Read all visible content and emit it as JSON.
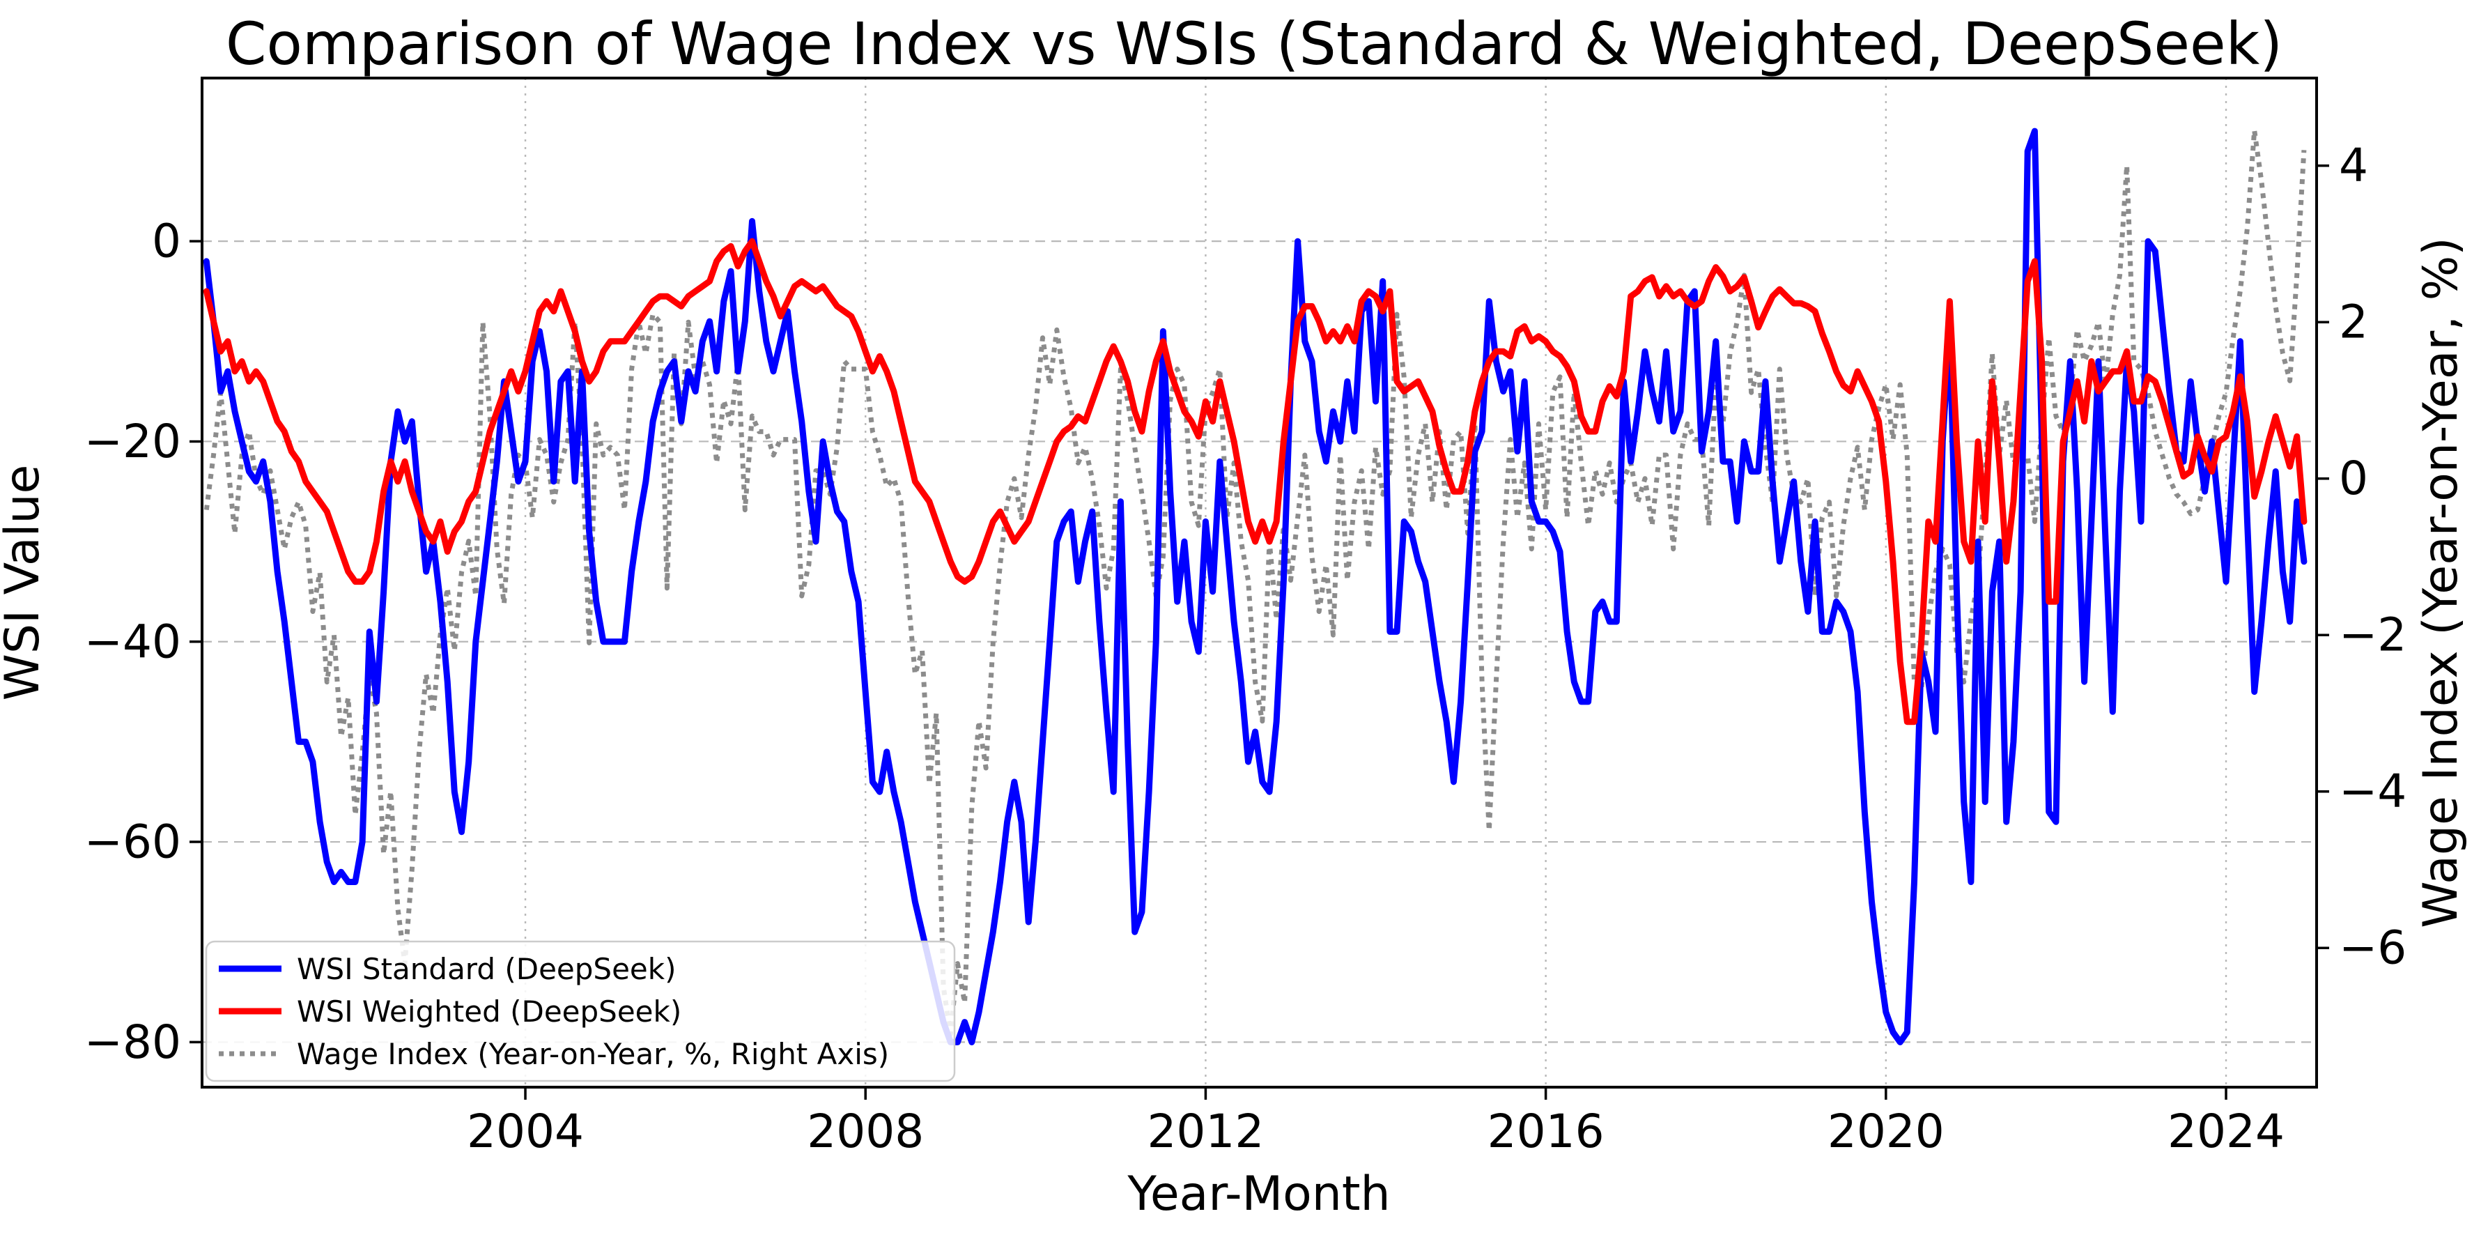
{
  "title": "Comparison of Wage Index vs WSIs (Standard & Weighted, DeepSeek)",
  "axes": {
    "x": {
      "label": "Year-Month",
      "tick_years": [
        2004,
        2008,
        2012,
        2016,
        2020,
        2024
      ]
    },
    "left": {
      "label": "WSI Value",
      "ticks": [
        0,
        -20,
        -40,
        -60,
        -80
      ],
      "lim": [
        -84.5,
        16.3
      ]
    },
    "right": {
      "label": "Wage Index (Year-on-Year, %)",
      "ticks": [
        4,
        2,
        0,
        -2,
        -4,
        -6
      ],
      "lim": [
        -7.78,
        5.12
      ]
    }
  },
  "legend": {
    "items": [
      {
        "label": "WSI Standard (DeepSeek)",
        "color": "#0000ff",
        "style": "solid"
      },
      {
        "label": "WSI Weighted (DeepSeek)",
        "color": "#ff0000",
        "style": "solid"
      },
      {
        "label": "Wage Index (Year-on-Year, %, Right Axis)",
        "color": "#8c8c8c",
        "style": "dotted"
      }
    ]
  },
  "colors": {
    "wsi_standard": "#0000ff",
    "wsi_weighted": "#ff0000",
    "wage_index": "#8c8c8c",
    "grid": "#b8b8b8",
    "spine": "#000000",
    "background": "#ffffff"
  },
  "chart_data": {
    "type": "line",
    "title": "Comparison of Wage Index vs WSIs (Standard & Weighted, DeepSeek)",
    "xlabel": "Year-Month",
    "x_start": "2000-04",
    "x_freq": "monthly",
    "x_start_year_frac": 2000.25,
    "x_lim_year_frac": [
      2000.198,
      2025.065
    ],
    "grid": true,
    "legend_position": "lower left",
    "series": [
      {
        "name": "WSI Standard (DeepSeek)",
        "axis": "left",
        "color": "#0000ff",
        "style": "solid",
        "values": [
          -2,
          -8,
          -15,
          -13,
          -17,
          -20,
          -23,
          -24,
          -22,
          -26,
          -33,
          -38,
          -44,
          -50,
          -50,
          -52,
          -58,
          -62,
          -64,
          -63,
          -64,
          -64,
          -60,
          -39,
          -46,
          -35,
          -22,
          -17,
          -20,
          -18,
          -26,
          -33,
          -30,
          -36,
          -44,
          -55,
          -59,
          -52,
          -40,
          -34,
          -28,
          -22,
          -14,
          -19,
          -24,
          -22,
          -12,
          -9,
          -13,
          -24,
          -14,
          -13,
          -24,
          -13,
          -29,
          -36,
          -40,
          -40,
          -40,
          -40,
          -33,
          -28,
          -24,
          -18,
          -15,
          -13,
          -12,
          -18,
          -13,
          -15,
          -10,
          -8,
          -13,
          -6,
          -3,
          -13,
          -8,
          2,
          -5,
          -10,
          -13,
          -10,
          -7,
          -13,
          -18,
          -25,
          -30,
          -20,
          -24,
          -27,
          -28,
          -33,
          -36,
          -45,
          -54,
          -55,
          -51,
          -55,
          -58,
          -62,
          -66,
          -69,
          -72,
          -75,
          -78,
          -80,
          -80,
          -78,
          -80,
          -77,
          -73,
          -69,
          -64,
          -58,
          -54,
          -58,
          -68,
          -60,
          -50,
          -40,
          -30,
          -28,
          -27,
          -34,
          -30,
          -27,
          -38,
          -47,
          -55,
          -26,
          -50,
          -69,
          -67,
          -55,
          -40,
          -9,
          -25,
          -36,
          -30,
          -38,
          -41,
          -28,
          -35,
          -22,
          -30,
          -38,
          -44,
          -52,
          -49,
          -54,
          -55,
          -48,
          -34,
          -14,
          0,
          -10,
          -12,
          -19,
          -22,
          -17,
          -20,
          -14,
          -19,
          -7,
          -6,
          -16,
          -4,
          -39,
          -39,
          -28,
          -29,
          -32,
          -34,
          -39,
          -44,
          -48,
          -54,
          -46,
          -34,
          -21,
          -19,
          -6,
          -12,
          -15,
          -13,
          -21,
          -14,
          -26,
          -28,
          -28,
          -29,
          -31,
          -39,
          -44,
          -46,
          -46,
          -37,
          -36,
          -38,
          -38,
          -14,
          -22,
          -17,
          -11,
          -15,
          -18,
          -11,
          -19,
          -17,
          -6,
          -5,
          -21,
          -17,
          -10,
          -22,
          -22,
          -28,
          -20,
          -23,
          -23,
          -14,
          -24,
          -32,
          -28,
          -24,
          -32,
          -37,
          -28,
          -39,
          -39,
          -36,
          -37,
          -39,
          -45,
          -57,
          -66,
          -72,
          -77,
          -79,
          -80,
          -79,
          -64,
          -41,
          -44,
          -49,
          -20,
          -9,
          -35,
          -56,
          -64,
          -30,
          -56,
          -35,
          -30,
          -58,
          -50,
          -35,
          9,
          11,
          -20,
          -57,
          -58,
          -22,
          -12,
          -25,
          -44,
          -28,
          -12,
          -30,
          -47,
          -25,
          -12,
          -17,
          -28,
          0,
          -1,
          -8,
          -15,
          -21,
          -22,
          -14,
          -20,
          -25,
          -20,
          -27,
          -34,
          -22,
          -10,
          -28,
          -45,
          -38,
          -30,
          -23,
          -33,
          -38,
          -26,
          -32
        ]
      },
      {
        "name": "WSI Weighted (DeepSeek)",
        "axis": "left",
        "color": "#ff0000",
        "style": "solid",
        "values": [
          -5,
          -8,
          -11,
          -10,
          -13,
          -12,
          -14,
          -13,
          -14,
          -16,
          -18,
          -19,
          -21,
          -22,
          -24,
          -25,
          -26,
          -27,
          -29,
          -31,
          -33,
          -34,
          -34,
          -33,
          -30,
          -25,
          -22,
          -24,
          -22,
          -25,
          -27,
          -29,
          -30,
          -28,
          -31,
          -29,
          -28,
          -26,
          -25,
          -22,
          -19,
          -17,
          -15,
          -13,
          -15,
          -13,
          -10,
          -7,
          -6,
          -7,
          -5,
          -7,
          -9,
          -12,
          -14,
          -13,
          -11,
          -10,
          -10,
          -10,
          -9,
          -8,
          -7,
          -6,
          -5.5,
          -5.5,
          -6,
          -6.5,
          -5.5,
          -5,
          -4.5,
          -4,
          -2,
          -1,
          -0.5,
          -2.5,
          -1,
          0,
          -2,
          -4,
          -5.5,
          -7.5,
          -6,
          -4.5,
          -4,
          -4.5,
          -5,
          -4.5,
          -5.5,
          -6.5,
          -7,
          -7.5,
          -9,
          -11,
          -13,
          -11.5,
          -13,
          -15,
          -18,
          -21,
          -24,
          -25,
          -26,
          -28,
          -30,
          -32,
          -33.5,
          -34,
          -33.5,
          -32,
          -30,
          -28,
          -27,
          -28.5,
          -30,
          -29,
          -28,
          -26,
          -24,
          -22,
          -20,
          -19,
          -18.5,
          -17.5,
          -18,
          -16,
          -14,
          -12,
          -10.5,
          -12,
          -14,
          -17,
          -19,
          -15,
          -12,
          -10,
          -13,
          -15,
          -17,
          -18,
          -19.5,
          -16,
          -18,
          -14,
          -17,
          -20,
          -24,
          -28,
          -30,
          -28,
          -30,
          -28,
          -20,
          -14,
          -8,
          -6.5,
          -6.5,
          -8,
          -10,
          -9,
          -10,
          -8.5,
          -10,
          -6,
          -5,
          -5.5,
          -7,
          -5,
          -14,
          -15,
          -14.5,
          -14,
          -15.5,
          -17,
          -20.5,
          -23,
          -25,
          -25,
          -22,
          -17,
          -14,
          -12,
          -11,
          -11,
          -11.5,
          -9,
          -8.5,
          -10,
          -9.5,
          -10,
          -11,
          -11.5,
          -12.5,
          -14,
          -17.5,
          -19,
          -19,
          -16,
          -14.5,
          -15.5,
          -13,
          -5.5,
          -5,
          -4,
          -3.6,
          -5.5,
          -4.5,
          -5.5,
          -5,
          -6,
          -6.5,
          -6,
          -4,
          -2.6,
          -3.5,
          -5,
          -4.5,
          -3.6,
          -6,
          -8.6,
          -7,
          -5.5,
          -4.8,
          -5.5,
          -6.2,
          -6.2,
          -6.5,
          -7,
          -9.2,
          -11,
          -13,
          -14.4,
          -15,
          -13,
          -14.5,
          -16,
          -18,
          -24,
          -32,
          -42,
          -48,
          -48,
          -40,
          -28,
          -30,
          -18,
          -6,
          -20,
          -30,
          -32,
          -20,
          -28,
          -14,
          -22,
          -32,
          -26,
          -15,
          -4,
          -2,
          -12,
          -36,
          -36,
          -20,
          -17,
          -14,
          -18,
          -12,
          -15,
          -14,
          -13,
          -13,
          -11,
          -16,
          -16,
          -13.5,
          -14,
          -16,
          -18.5,
          -21,
          -23.5,
          -23,
          -19.5,
          -21.5,
          -23,
          -20,
          -19.5,
          -17,
          -13.5,
          -18,
          -25.5,
          -23,
          -20,
          -17.5,
          -20,
          -22.5,
          -19.5,
          -28
        ]
      },
      {
        "name": "Wage Index (Year-on-Year, %, Right Axis)",
        "axis": "right",
        "color": "#8c8c8c",
        "style": "dotted",
        "values": [
          -0.4,
          0.3,
          1.1,
          0.2,
          -0.7,
          0.3,
          0.6,
          0,
          -0.2,
          0.1,
          -0.4,
          -0.9,
          -0.5,
          -0.3,
          -0.6,
          -1.7,
          -1.2,
          -2.6,
          -2,
          -3.3,
          -2.8,
          -4.3,
          -3.5,
          -2.5,
          -3,
          -4.8,
          -4,
          -5.5,
          -6.2,
          -5,
          -3.5,
          -2.5,
          -3,
          -2,
          -1.4,
          -2.2,
          -1.2,
          -0.8,
          -1.5,
          2,
          0.8,
          -0.9,
          -1.6,
          -0.2,
          0.3,
          0.2,
          -0.5,
          0.5,
          0.3,
          -0.3,
          0.2,
          0.5,
          2,
          0.5,
          -2.1,
          0.7,
          0.3,
          0.4,
          0.3,
          -0.4,
          1.4,
          2,
          1.6,
          2.1,
          2,
          -1.4,
          1.6,
          0.7,
          2,
          1.3,
          1.5,
          1.2,
          0.2,
          1,
          0.7,
          1.5,
          -0.4,
          0.8,
          0.6,
          0.6,
          0.3,
          0.5,
          0.5,
          0.5,
          -1.5,
          -1.1,
          0.1,
          0.1,
          -0.2,
          0.4,
          1.5,
          1.4,
          1.4,
          1.4,
          0.6,
          0.3,
          -0.1,
          0,
          -0.3,
          -1.5,
          -2.5,
          -2.2,
          -3.9,
          -3,
          -6.5,
          -7.1,
          -6.2,
          -6.7,
          -4.2,
          -3.1,
          -3.7,
          -2.1,
          -1.1,
          -0.3,
          0,
          -0.5,
          0.3,
          0.9,
          1.8,
          1.2,
          1.9,
          1.3,
          0.9,
          0.2,
          0.4,
          0,
          -0.6,
          -1.4,
          -0.9,
          1.4,
          1,
          0.4,
          -0.2,
          -0.8,
          -1.5,
          -1,
          1,
          1.4,
          1.2,
          -0.3,
          -0.6,
          0.9,
          1.1,
          1.4,
          -0.5,
          0.2,
          -0.8,
          -1.3,
          -2.6,
          -3.1,
          -0.8,
          -1.8,
          -0.6,
          -1.3,
          -0.5,
          0.3,
          -1,
          -1.7,
          -1.1,
          -2,
          0.3,
          -1.3,
          -0.3,
          0.1,
          -0.9,
          0.4,
          -0.2,
          0.1,
          2.1,
          1.3,
          -0.5,
          0.3,
          0.7,
          -0.3,
          0.6,
          -0.4,
          0.5,
          0.6,
          -0.7,
          0.7,
          -2.6,
          -4.5,
          -2.6,
          -0.8,
          0.5,
          -0.5,
          0.2,
          -0.9,
          0.7,
          -0.4,
          1.1,
          1.3,
          -0.5,
          1.1,
          0.2,
          -0.6,
          0.1,
          -0.2,
          0.2,
          -0.3,
          0,
          0.2,
          -0.3,
          0,
          -0.6,
          0.3,
          0.3,
          -0.9,
          0.3,
          0.7,
          0.5,
          0.5,
          -0.6,
          1.3,
          0.7,
          1.6,
          2,
          2.6,
          1.1,
          1.4,
          0.4,
          -0.3,
          1.4,
          0.3,
          -0.2,
          -0.3,
          0,
          -1.5,
          -0.5,
          -0.3,
          -1.5,
          -0.6,
          0,
          0.4,
          -0.4,
          0.5,
          0.9,
          1.2,
          0.5,
          1.2,
          0.3,
          -2.6,
          -2.7,
          -1.8,
          -1.2,
          -0.9,
          -1.1,
          -2.2,
          -2.6,
          -1.8,
          -1.3,
          0,
          1.6,
          0.3,
          1,
          0.2,
          0.3,
          0.3,
          -0.55,
          0.7,
          1.8,
          0.8,
          0.6,
          1,
          1.9,
          1.5,
          1.7,
          2,
          1.2,
          2.1,
          2.6,
          4,
          1.5,
          1.4,
          1.1,
          0.6,
          0.3,
          0,
          -0.2,
          -0.3,
          -0.45,
          -0.4,
          0,
          0.4,
          0.8,
          1.1,
          1.8,
          2.4,
          3.2,
          4.45,
          3.8,
          3,
          2.2,
          1.6,
          1.25,
          2.6,
          4.2
        ]
      }
    ]
  }
}
